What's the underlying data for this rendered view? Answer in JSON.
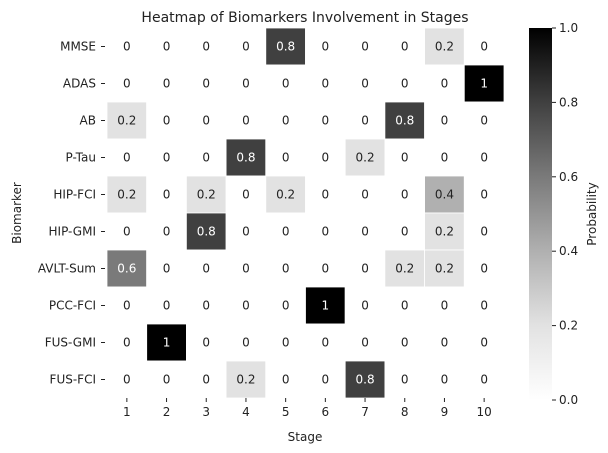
{
  "chart_data": {
    "type": "heatmap",
    "title": "Heatmap of Biomarkers Involvement in Stages",
    "xlabel": "Stage",
    "ylabel": "Biomarker",
    "colorbar_label": "Probability",
    "colormap": "Greys",
    "colorbar_range": [
      0.0,
      1.0
    ],
    "colorbar_ticks": [
      "0.0",
      "0.2",
      "0.4",
      "0.6",
      "0.8",
      "1.0"
    ],
    "x_categories": [
      "1",
      "2",
      "3",
      "4",
      "5",
      "6",
      "7",
      "8",
      "9",
      "10"
    ],
    "y_categories": [
      "MMSE",
      "ADAS",
      "AB",
      "P-Tau",
      "HIP-FCI",
      "HIP-GMI",
      "AVLT-Sum",
      "PCC-FCI",
      "FUS-GMI",
      "FUS-FCI"
    ],
    "values": [
      [
        0,
        0,
        0,
        0,
        0.8,
        0,
        0,
        0,
        0.2,
        0
      ],
      [
        0,
        0,
        0,
        0,
        0,
        0,
        0,
        0,
        0,
        1
      ],
      [
        0.2,
        0,
        0,
        0,
        0,
        0,
        0,
        0.8,
        0,
        0
      ],
      [
        0,
        0,
        0,
        0.8,
        0,
        0,
        0.2,
        0,
        0,
        0
      ],
      [
        0.2,
        0,
        0.2,
        0,
        0.2,
        0,
        0,
        0,
        0.4,
        0
      ],
      [
        0,
        0,
        0.8,
        0,
        0,
        0,
        0,
        0,
        0.2,
        0
      ],
      [
        0.6,
        0,
        0,
        0,
        0,
        0,
        0,
        0.2,
        0.2,
        0
      ],
      [
        0,
        0,
        0,
        0,
        0,
        1,
        0,
        0,
        0,
        0
      ],
      [
        0,
        1,
        0,
        0,
        0,
        0,
        0,
        0,
        0,
        0
      ],
      [
        0,
        0,
        0,
        0.2,
        0,
        0,
        0.8,
        0,
        0,
        0
      ]
    ],
    "grid": false,
    "legend": "colorbar-right"
  }
}
